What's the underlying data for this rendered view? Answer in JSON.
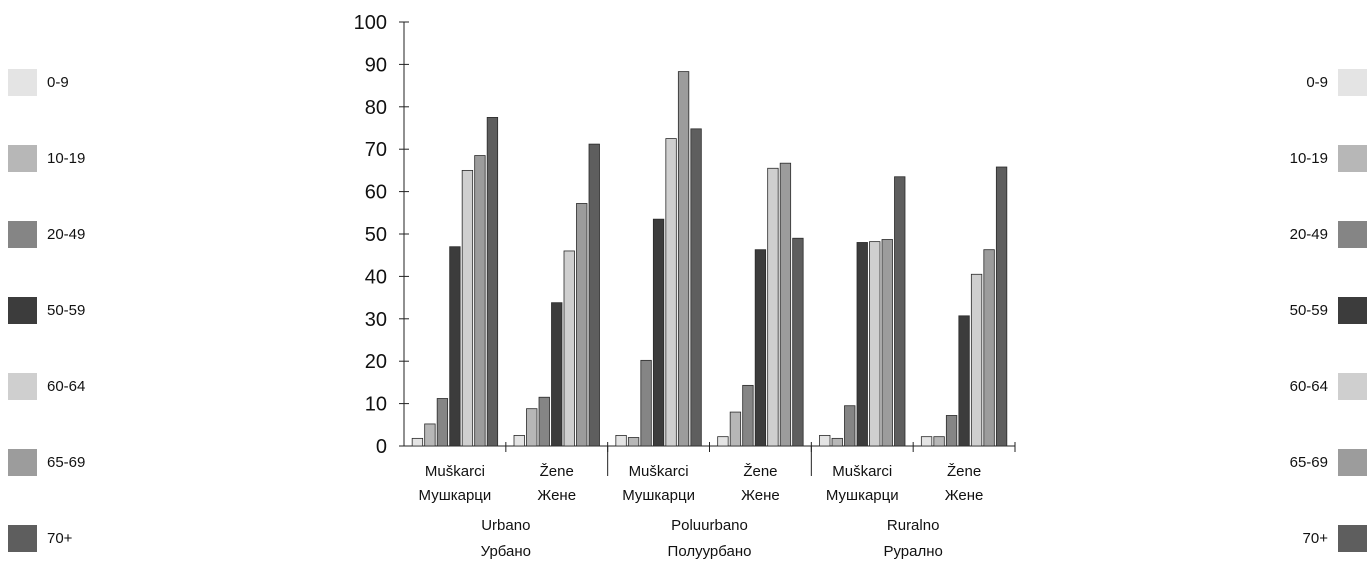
{
  "legend": {
    "entries": [
      {
        "label": "0-9",
        "color": "#e4e4e4"
      },
      {
        "label": "10-19",
        "color": "#b7b7b7"
      },
      {
        "label": "20-49",
        "color": "#858585"
      },
      {
        "label": "50-59",
        "color": "#3c3c3c"
      },
      {
        "label": "60-64",
        "color": "#cfcfcf"
      },
      {
        "label": "65-69",
        "color": "#9c9c9c"
      },
      {
        "label": "70+",
        "color": "#5e5e5e"
      }
    ]
  },
  "chart_data": {
    "type": "bar",
    "ylim": [
      0,
      100
    ],
    "yticks": [
      0,
      10,
      20,
      30,
      40,
      50,
      60,
      70,
      80,
      90,
      100
    ],
    "grid": false,
    "legend_placement": "left and right",
    "groups": [
      {
        "label_line1": "Urbano",
        "label_line2": "Урбано",
        "categories": [
          {
            "label_line1": "Muškarci",
            "label_line2": "Мушкарци",
            "values": [
              1.8,
              5.2,
              11.2,
              47,
              65,
              68.5,
              77.5
            ]
          },
          {
            "label_line1": "Žene",
            "label_line2": "Жене",
            "values": [
              2.5,
              8.8,
              11.5,
              33.8,
              46,
              57.2,
              71.2
            ]
          }
        ]
      },
      {
        "label_line1": "Poluurbano",
        "label_line2": "Полуурбано",
        "categories": [
          {
            "label_line1": "Muškarci",
            "label_line2": "Мушкарци",
            "values": [
              2.5,
              2,
              20.2,
              53.5,
              72.5,
              88.3,
              74.8
            ]
          },
          {
            "label_line1": "Žene",
            "label_line2": "Жене",
            "values": [
              2.2,
              8,
              14.3,
              46.3,
              65.5,
              66.7,
              49
            ]
          }
        ]
      },
      {
        "label_line1": "Ruralno",
        "label_line2": "Рурално",
        "categories": [
          {
            "label_line1": "Muškarci",
            "label_line2": "Мушкарци",
            "values": [
              2.5,
              1.8,
              9.5,
              48,
              48.2,
              48.7,
              63.5
            ]
          },
          {
            "label_line1": "Žene",
            "label_line2": "Жене",
            "values": [
              2.2,
              2.2,
              7.2,
              30.7,
              40.5,
              46.3,
              65.8
            ]
          }
        ]
      }
    ]
  }
}
